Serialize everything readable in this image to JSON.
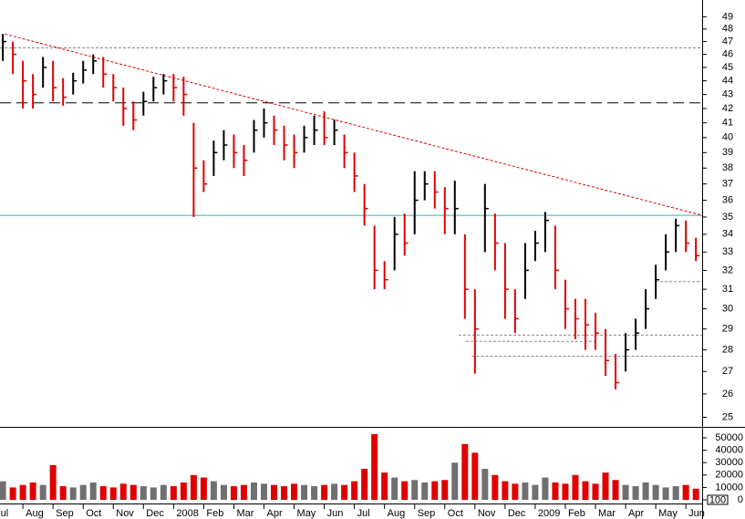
{
  "chart_data": [
    {
      "type": "ohlc",
      "x": [
        0.333,
        0.667,
        1,
        1.333,
        1.667,
        2,
        2.333,
        2.667,
        3,
        3.333,
        3.667,
        4,
        4.333,
        4.667,
        5,
        5.333,
        5.667,
        6,
        6.333,
        6.667,
        7,
        7.333,
        7.667,
        8,
        8.333,
        8.667,
        9,
        9.333,
        9.667,
        10,
        10.333,
        10.667,
        11,
        11.333,
        11.667,
        12,
        12.333,
        12.667,
        13,
        13.333,
        13.667,
        14,
        14.333,
        14.667,
        15,
        15.333,
        15.667,
        16,
        16.333,
        16.667,
        17,
        17.333,
        17.667,
        18,
        18.333,
        18.667,
        19,
        19.333,
        19.667,
        20,
        20.333,
        20.667,
        21,
        21.333,
        21.667,
        22,
        22.333,
        22.667,
        23,
        23.333
      ],
      "high": [
        47.6,
        47.0,
        45.5,
        44.5,
        45.8,
        45.5,
        44.2,
        44.6,
        45.5,
        46.0,
        45.8,
        44.5,
        43.5,
        42.5,
        43.2,
        44.3,
        44.5,
        44.5,
        44.3,
        41.0,
        38.5,
        39.8,
        40.5,
        40.2,
        39.5,
        41.2,
        42.0,
        41.5,
        40.8,
        40.2,
        40.8,
        41.5,
        41.8,
        41.2,
        40.2,
        39.0,
        37.0,
        34.5,
        32.5,
        35.0,
        35.2,
        37.8,
        37.8,
        37.8,
        36.8,
        37.2,
        34.0,
        31.0,
        37.0,
        35.2,
        33.5,
        31.0,
        33.5,
        34.2,
        35.3,
        34.5,
        31.5,
        30.5,
        30.5,
        29.8,
        29.0,
        27.8,
        28.8,
        29.5,
        31.0,
        32.3,
        34.0,
        34.9,
        34.8,
        33.8
      ],
      "low": [
        45.5,
        44.5,
        42.0,
        42.0,
        43.5,
        42.5,
        42.2,
        43.0,
        43.8,
        44.5,
        43.5,
        42.5,
        40.8,
        40.5,
        41.5,
        42.5,
        43.0,
        42.5,
        41.5,
        35.0,
        36.5,
        37.5,
        38.5,
        38.0,
        37.5,
        39.0,
        40.0,
        39.5,
        38.5,
        38.0,
        39.0,
        39.5,
        39.5,
        39.5,
        38.0,
        36.5,
        34.5,
        31.0,
        31.0,
        32.0,
        32.8,
        34.0,
        36.0,
        35.5,
        34.0,
        34.0,
        29.5,
        26.9,
        33.0,
        32.0,
        29.5,
        28.8,
        30.5,
        32.5,
        33.0,
        31.0,
        29.0,
        28.5,
        28.0,
        28.0,
        26.8,
        26.2,
        27.0,
        28.0,
        29.0,
        30.5,
        32.0,
        33.0,
        33.0,
        32.5
      ],
      "close": [
        47.0,
        46.0,
        44.0,
        43.0,
        45.0,
        43.5,
        42.8,
        44.0,
        44.8,
        45.5,
        44.5,
        43.5,
        42.0,
        41.2,
        42.5,
        43.5,
        44.0,
        43.5,
        43.0,
        38.0,
        37.0,
        39.0,
        39.5,
        39.0,
        38.5,
        40.5,
        41.0,
        40.5,
        39.5,
        39.0,
        40.0,
        40.5,
        40.0,
        40.5,
        39.0,
        37.5,
        35.5,
        32.0,
        31.5,
        34.0,
        33.5,
        36.0,
        37.0,
        36.5,
        35.5,
        35.5,
        31.0,
        29.0,
        35.5,
        33.5,
        31.0,
        29.5,
        32.0,
        33.5,
        34.8,
        32.0,
        30.0,
        29.5,
        29.2,
        28.8,
        27.5,
        26.5,
        28.0,
        28.8,
        30.0,
        31.5,
        33.0,
        34.5,
        33.5,
        32.8
      ],
      "up_color": "#000000",
      "down_color": "#e00000",
      "log_scale": true,
      "xlim": [
        0.24,
        23.54
      ],
      "ylim": [
        24.6,
        50.4
      ],
      "yticks": [
        25,
        26,
        27,
        28,
        29,
        30,
        31,
        32,
        33,
        34,
        35,
        36,
        37,
        38,
        39,
        40,
        41,
        42,
        43,
        44,
        45,
        46,
        47,
        48,
        49
      ],
      "trendline": {
        "x": [
          0.4,
          23.54
        ],
        "y": [
          47.6,
          35.1
        ],
        "color": "#e00000"
      },
      "reference_lines": [
        {
          "value": 46.5,
          "from": 0.24,
          "to": 23.54,
          "color": "#888888",
          "dash": "dotted"
        },
        {
          "value": 42.4,
          "from": 0.24,
          "to": 23.54,
          "color": "#000000",
          "dash": "dashed"
        },
        {
          "value": 35.1,
          "from": 0.24,
          "to": 23.54,
          "color": "#3cb3a0",
          "dash": "solid"
        },
        {
          "value": 31.4,
          "from": 22.0,
          "to": 23.54,
          "color": "#888888",
          "dash": "dotted"
        },
        {
          "value": 28.7,
          "from": 15.46,
          "to": 23.54,
          "color": "#888888",
          "dash": "dotted"
        },
        {
          "value": 28.4,
          "from": 15.7,
          "to": 20.0,
          "color": "#888888",
          "dash": "dotted"
        },
        {
          "value": 27.7,
          "from": 15.9,
          "to": 23.54,
          "color": "#888888",
          "dash": "dotted"
        }
      ]
    },
    {
      "type": "volume",
      "values": [
        15000,
        10000,
        12000,
        14000,
        12000,
        28000,
        11000,
        10000,
        12000,
        14000,
        11000,
        10000,
        13000,
        12000,
        11000,
        10000,
        12000,
        11000,
        14000,
        20000,
        18000,
        15000,
        12000,
        11000,
        12000,
        14000,
        13000,
        12000,
        11000,
        13000,
        12000,
        11000,
        12000,
        13000,
        12000,
        15000,
        25000,
        53000,
        22000,
        18000,
        15000,
        16000,
        14000,
        15000,
        16000,
        30000,
        45000,
        38000,
        25000,
        20000,
        15000,
        13000,
        14000,
        12000,
        18000,
        14000,
        13000,
        20000,
        15000,
        13000,
        22000,
        16000,
        12000,
        11000,
        14000,
        12000,
        10000,
        11000,
        12000,
        9000
      ],
      "up_color": "#707070",
      "down_color": "#e00000",
      "ylim": [
        0,
        55000
      ],
      "yticks": [
        0,
        10000,
        20000,
        30000,
        40000,
        50000
      ],
      "scale_label": "100",
      "xticks": [
        {
          "value": 0,
          "label": "Jul"
        },
        {
          "value": 1,
          "label": "Aug"
        },
        {
          "value": 2,
          "label": "Sep"
        },
        {
          "value": 3,
          "label": "Oct"
        },
        {
          "value": 4,
          "label": "Nov"
        },
        {
          "value": 5,
          "label": "Dec"
        },
        {
          "value": 6,
          "label": "2008"
        },
        {
          "value": 7,
          "label": "Feb"
        },
        {
          "value": 8,
          "label": "Mar"
        },
        {
          "value": 9,
          "label": "Apr"
        },
        {
          "value": 10,
          "label": "May"
        },
        {
          "value": 11,
          "label": "Jun"
        },
        {
          "value": 12,
          "label": "Jul"
        },
        {
          "value": 13,
          "label": "Aug"
        },
        {
          "value": 14,
          "label": "Sep"
        },
        {
          "value": 15,
          "label": "Oct"
        },
        {
          "value": 16,
          "label": "Nov"
        },
        {
          "value": 17,
          "label": "Dec"
        },
        {
          "value": 18,
          "label": "2009"
        },
        {
          "value": 19,
          "label": "Feb"
        },
        {
          "value": 20,
          "label": "Mar"
        },
        {
          "value": 21,
          "label": "Apr"
        },
        {
          "value": 22,
          "label": "May"
        },
        {
          "value": 23,
          "label": "Jun"
        }
      ]
    }
  ]
}
